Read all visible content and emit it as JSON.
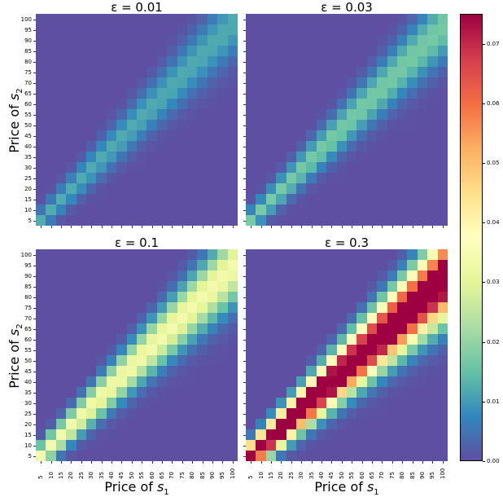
{
  "chart_data": {
    "type": "heatmap",
    "layout": "2x2 grid with shared colorbar",
    "colormap": "Spectral_r",
    "colorbar": {
      "vmin": 0.0,
      "vmax": 0.075,
      "ticks": [
        0.0,
        0.01,
        0.02,
        0.03,
        0.04,
        0.05,
        0.06,
        0.07
      ],
      "tick_labels": [
        "0.00",
        "0.01",
        "0.02",
        "0.03",
        "0.04",
        "0.05",
        "0.06",
        "0.07"
      ]
    },
    "x_categories": [
      5,
      10,
      15,
      20,
      25,
      30,
      35,
      40,
      45,
      50,
      55,
      60,
      65,
      70,
      75,
      80,
      85,
      90,
      95,
      100
    ],
    "y_categories": [
      100,
      95,
      90,
      85,
      80,
      75,
      70,
      65,
      60,
      55,
      50,
      45,
      40,
      35,
      30,
      25,
      20,
      15,
      10,
      5
    ],
    "xlabel": "Price of s1",
    "ylabel": "Price of s2",
    "values_note": "Approximate values estimated from cell colors; not exact. Diagonal band, peak near s2 ≈ s1, widening at higher prices.",
    "panels": [
      {
        "title": "ε = 0.01",
        "epsilon": 0.01,
        "peak_value_approx": 0.012,
        "band_width_approx": 3.0,
        "band_offset_approx": -0.5,
        "show_ylabel": true,
        "show_xlabel": false
      },
      {
        "title": "ε = 0.03",
        "epsilon": 0.03,
        "peak_value_approx": 0.017,
        "band_width_approx": 3.0,
        "band_offset_approx": -0.8,
        "show_ylabel": false,
        "show_xlabel": false
      },
      {
        "title": "ε = 0.1",
        "epsilon": 0.1,
        "peak_value_approx": 0.034,
        "band_width_approx": 3.2,
        "band_offset_approx": -1.3,
        "show_ylabel": true,
        "show_xlabel": true
      },
      {
        "title": "ε = 0.3",
        "epsilon": 0.3,
        "peak_value_approx": 0.09,
        "band_width_approx": 3.4,
        "band_offset_approx": -2.5,
        "show_ylabel": false,
        "show_xlabel": true
      }
    ]
  },
  "labels": {
    "panel_titles": [
      "ε = 0.01",
      "ε = 0.03",
      "ε = 0.1",
      "ε = 0.3"
    ],
    "ylabel_text": "Price of s",
    "ylabel_sub": "2",
    "xlabel_text": "Price of s",
    "xlabel_sub": "1"
  }
}
